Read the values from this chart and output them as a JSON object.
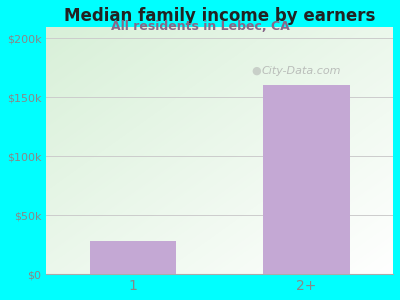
{
  "title": "Median family income by earners",
  "subtitle": "All residents in Lebec, CA",
  "categories": [
    "1",
    "2+"
  ],
  "values": [
    28000,
    160000
  ],
  "bar_color": "#C4A8D4",
  "ylim": [
    0,
    210000
  ],
  "yticks": [
    0,
    50000,
    100000,
    150000,
    200000
  ],
  "ytick_labels": [
    "$0",
    "$50k",
    "$100k",
    "$150k",
    "$200k"
  ],
  "background_color": "#00FFFF",
  "title_color": "#222222",
  "subtitle_color": "#886688",
  "tick_color": "#888888",
  "watermark": "City-Data.com",
  "title_fontsize": 12,
  "subtitle_fontsize": 9,
  "grid_color": "#cccccc",
  "bar_positions": [
    0.5,
    1.5
  ],
  "bar_width": 0.5,
  "xlim": [
    0,
    2
  ]
}
